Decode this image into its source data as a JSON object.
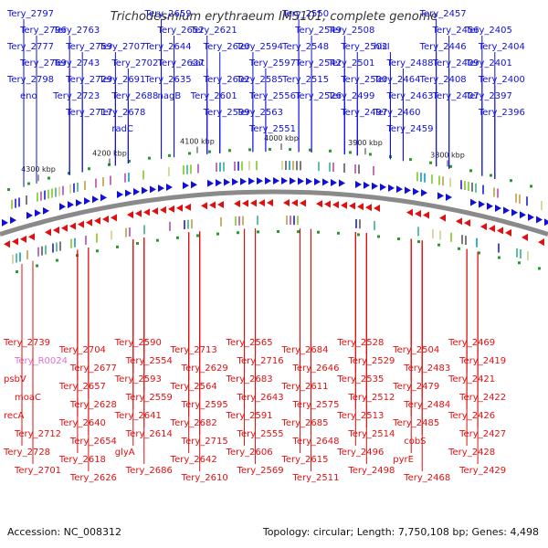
{
  "title": "Trichodesmium erythraeum IMS101, complete genome",
  "footer": {
    "accession": "Accession: NC_008312",
    "topology": "Topology: circular; Length: 7,750,108 bp; Genes: 4,498"
  },
  "colors": {
    "forward_strand": "#1010d8",
    "reverse_strand": "#e01010",
    "rna_label": "#e070d0",
    "backbone": "#8a8a8a"
  },
  "ticks": [
    "4300 kbp",
    "4200 kbp",
    "4100 kbp",
    "4000 kbp",
    "3900 kbp",
    "3800 kbp"
  ],
  "forward_labels": [
    "Tery_2797",
    "Tery_2796",
    "Tery_2777",
    "Tery_2769",
    "Tery_2798",
    "eno",
    "Tery_2763",
    "Tery_2759",
    "Tery_2743",
    "Tery_2729",
    "Tery_2723",
    "Tery_2717",
    "Tery_2707",
    "Tery_2702",
    "Tery_2691",
    "Tery_2688",
    "Tery_2678",
    "radC",
    "Tery_2659",
    "Tery_2652",
    "Tery_2644",
    "Tery_2637",
    "Tery_2635",
    "nagB",
    "Tery_2621",
    "Tery_2620",
    "sat",
    "Tery_2602",
    "Tery_2601",
    "Tery_2599",
    "Tery_2594",
    "Tery_2597",
    "Tery_2585",
    "Tery_2556",
    "Tery_2563",
    "Tery_2551",
    "Tery_2550",
    "Tery_2549",
    "Tery_2548",
    "Tery_2542",
    "Tery_2515",
    "Tery_2526",
    "Tery_2508",
    "Tery_2502",
    "Tery_2501",
    "Tery_2500",
    "Tery_2499",
    "Tery_2497",
    "hisI",
    "Tery_2488",
    "Tery_2464",
    "Tery_2463",
    "Tery_2460",
    "Tery_2459",
    "Tery_2457",
    "Tery_2456",
    "Tery_2446",
    "Tery_2409",
    "Tery_2408",
    "Tery_2407",
    "Tery_2405",
    "Tery_2404",
    "Tery_2401",
    "Tery_2400",
    "Tery_2397",
    "Tery_2396"
  ],
  "reverse_labels": [
    "Tery_2739",
    "Tery_R0024",
    "psbV",
    "moaC",
    "recA",
    "Tery_2712",
    "Tery_2728",
    "Tery_2701",
    "Tery_2704",
    "Tery_2677",
    "Tery_2657",
    "Tery_2628",
    "Tery_2640",
    "Tery_2654",
    "Tery_2618",
    "Tery_2626",
    "Tery_2590",
    "Tery_2554",
    "Tery_2593",
    "Tery_2559",
    "Tery_2641",
    "Tery_2614",
    "glyA",
    "Tery_2686",
    "Tery_2713",
    "Tery_2629",
    "Tery_2564",
    "Tery_2595",
    "Tery_2682",
    "Tery_2715",
    "Tery_2642",
    "Tery_2610",
    "Tery_2565",
    "Tery_2716",
    "Tery_2683",
    "Tery_2643",
    "Tery_2591",
    "Tery_2555",
    "Tery_2606",
    "Tery_2569",
    "Tery_2684",
    "Tery_2646",
    "Tery_2611",
    "Tery_2575",
    "Tery_2685",
    "Tery_2648",
    "Tery_2615",
    "Tery_2511",
    "Tery_2528",
    "Tery_2529",
    "Tery_2535",
    "Tery_2512",
    "Tery_2513",
    "Tery_2514",
    "Tery_2496",
    "Tery_2498",
    "Tery_2504",
    "Tery_2483",
    "Tery_2479",
    "Tery_2484",
    "Tery_2485",
    "cobS",
    "pyrE",
    "Tery_2468",
    "Tery_2469",
    "Tery_2419",
    "Tery_2421",
    "Tery_2422",
    "Tery_2426",
    "Tery_2427",
    "Tery_2428",
    "Tery_2429"
  ]
}
